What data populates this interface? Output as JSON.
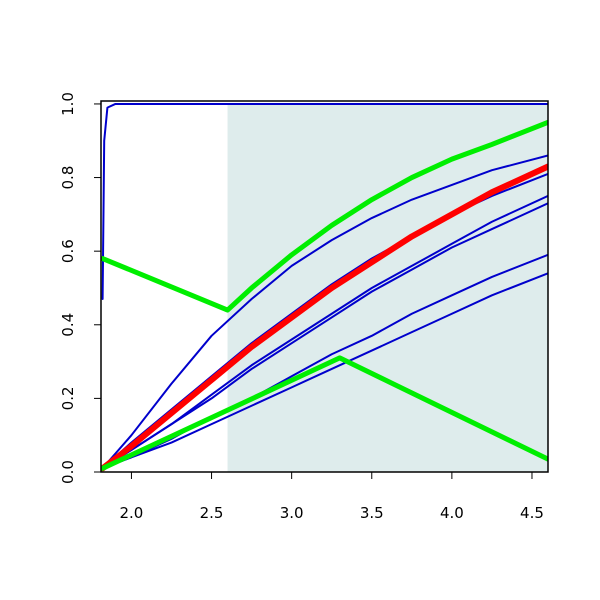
{
  "chart_data": {
    "type": "line",
    "xlim": [
      1.81,
      4.6
    ],
    "ylim": [
      0,
      1.008
    ],
    "xticks": [
      {
        "value": 2.0,
        "label": "2.0"
      },
      2.5,
      {
        "value": 3.0,
        "label": "3.0"
      },
      3.5,
      {
        "value": 4.0,
        "label": "4.0"
      },
      4.5
    ],
    "yticks": [
      {
        "value": 0.0,
        "label": "0.0"
      },
      0.2,
      0.4,
      0.6,
      0.8,
      {
        "value": 1.0,
        "label": "1.0"
      }
    ],
    "shade": {
      "x": [
        2.6,
        4.6
      ],
      "y": [
        0,
        1
      ],
      "color": "#deecec"
    },
    "series": [
      {
        "color": "#0000cc",
        "width": 2,
        "x": [
          1.82,
          1.83,
          1.85,
          1.9,
          4.6
        ],
        "values": [
          0.47,
          0.9,
          0.99,
          1.0,
          1.0
        ]
      },
      {
        "color": "#0000cc",
        "width": 2,
        "x": [
          1.82,
          2.0,
          2.25,
          2.5,
          2.75,
          3.0,
          3.25,
          3.5,
          3.75,
          4.0,
          4.25,
          4.6
        ],
        "values": [
          0.01,
          0.1,
          0.24,
          0.37,
          0.47,
          0.56,
          0.63,
          0.69,
          0.74,
          0.78,
          0.82,
          0.86
        ]
      },
      {
        "color": "#0000cc",
        "width": 2,
        "x": [
          1.82,
          2.0,
          2.25,
          2.5,
          2.75,
          3.0,
          3.25,
          3.5,
          3.75,
          4.0,
          4.25,
          4.6
        ],
        "values": [
          0.01,
          0.08,
          0.17,
          0.26,
          0.35,
          0.43,
          0.51,
          0.58,
          0.64,
          0.7,
          0.75,
          0.81
        ]
      },
      {
        "color": "#0000cc",
        "width": 2,
        "x": [
          1.82,
          2.0,
          2.25,
          2.5,
          2.75,
          3.0,
          3.25,
          3.5,
          3.75,
          4.0,
          4.25,
          4.6
        ],
        "values": [
          0.01,
          0.06,
          0.13,
          0.21,
          0.29,
          0.36,
          0.43,
          0.5,
          0.56,
          0.62,
          0.68,
          0.75
        ]
      },
      {
        "color": "#0000cc",
        "width": 2,
        "x": [
          1.82,
          2.0,
          2.25,
          2.5,
          2.75,
          3.0,
          3.25,
          3.5,
          3.75,
          4.0,
          4.25,
          4.6
        ],
        "values": [
          0.01,
          0.06,
          0.13,
          0.2,
          0.28,
          0.35,
          0.42,
          0.49,
          0.55,
          0.61,
          0.66,
          0.73
        ]
      },
      {
        "color": "#0000cc",
        "width": 2,
        "x": [
          1.82,
          2.0,
          2.25,
          2.5,
          2.75,
          3.0,
          3.25,
          3.5,
          3.75,
          4.0,
          4.25,
          4.6
        ],
        "values": [
          0.01,
          0.04,
          0.09,
          0.15,
          0.2,
          0.26,
          0.32,
          0.37,
          0.43,
          0.48,
          0.53,
          0.59
        ]
      },
      {
        "color": "#0000cc",
        "width": 2,
        "x": [
          1.82,
          2.0,
          2.25,
          2.5,
          2.75,
          3.0,
          3.25,
          3.5,
          3.75,
          4.0,
          4.25,
          4.6
        ],
        "values": [
          0.01,
          0.04,
          0.08,
          0.13,
          0.18,
          0.23,
          0.28,
          0.33,
          0.38,
          0.43,
          0.48,
          0.54
        ]
      },
      {
        "color": "#ff0000",
        "width": 6,
        "x": [
          1.82,
          2.0,
          2.25,
          2.5,
          2.75,
          3.0,
          3.25,
          3.5,
          3.75,
          4.0,
          4.25,
          4.6
        ],
        "values": [
          0.01,
          0.07,
          0.16,
          0.25,
          0.34,
          0.42,
          0.5,
          0.57,
          0.64,
          0.7,
          0.76,
          0.83
        ]
      },
      {
        "color": "#00ee00",
        "width": 5,
        "x": [
          1.82,
          2.6,
          2.75,
          3.0,
          3.25,
          3.5,
          3.75,
          4.0,
          4.25,
          4.6
        ],
        "values": [
          0.58,
          0.44,
          0.5,
          0.59,
          0.67,
          0.74,
          0.8,
          0.85,
          0.89,
          0.95
        ]
      },
      {
        "color": "#00ee00",
        "width": 5,
        "x": [
          1.82,
          3.3,
          4.6
        ],
        "values": [
          0.01,
          0.31,
          0.035
        ]
      }
    ]
  }
}
